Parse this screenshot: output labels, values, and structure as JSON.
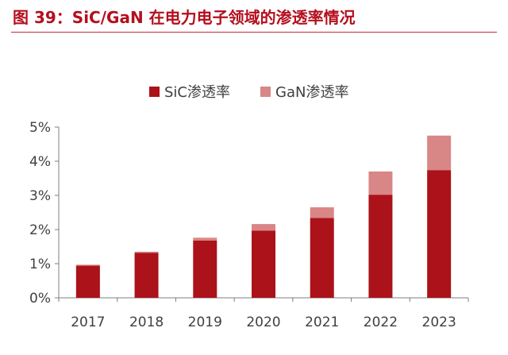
{
  "page_title": "图 39：SiC/GaN 在电力电子领域的渗透率情况",
  "chart_data": {
    "type": "bar",
    "stacked": true,
    "categories": [
      "2017",
      "2018",
      "2019",
      "2020",
      "2021",
      "2022",
      "2023"
    ],
    "series": [
      {
        "name": "SiC渗透率",
        "color": "#ab1219",
        "values": [
          0.94,
          1.32,
          1.68,
          1.97,
          2.34,
          3.02,
          3.74
        ]
      },
      {
        "name": "GaN渗透率",
        "color": "#d98686",
        "values": [
          0.03,
          0.03,
          0.08,
          0.19,
          0.31,
          0.68,
          1.01
        ]
      }
    ],
    "y_ticks": [
      "0%",
      "1%",
      "2%",
      "3%",
      "4%",
      "5%"
    ],
    "ylim": [
      0,
      5
    ],
    "y_unit": "%",
    "legend_position": "top-center",
    "grid": false
  }
}
